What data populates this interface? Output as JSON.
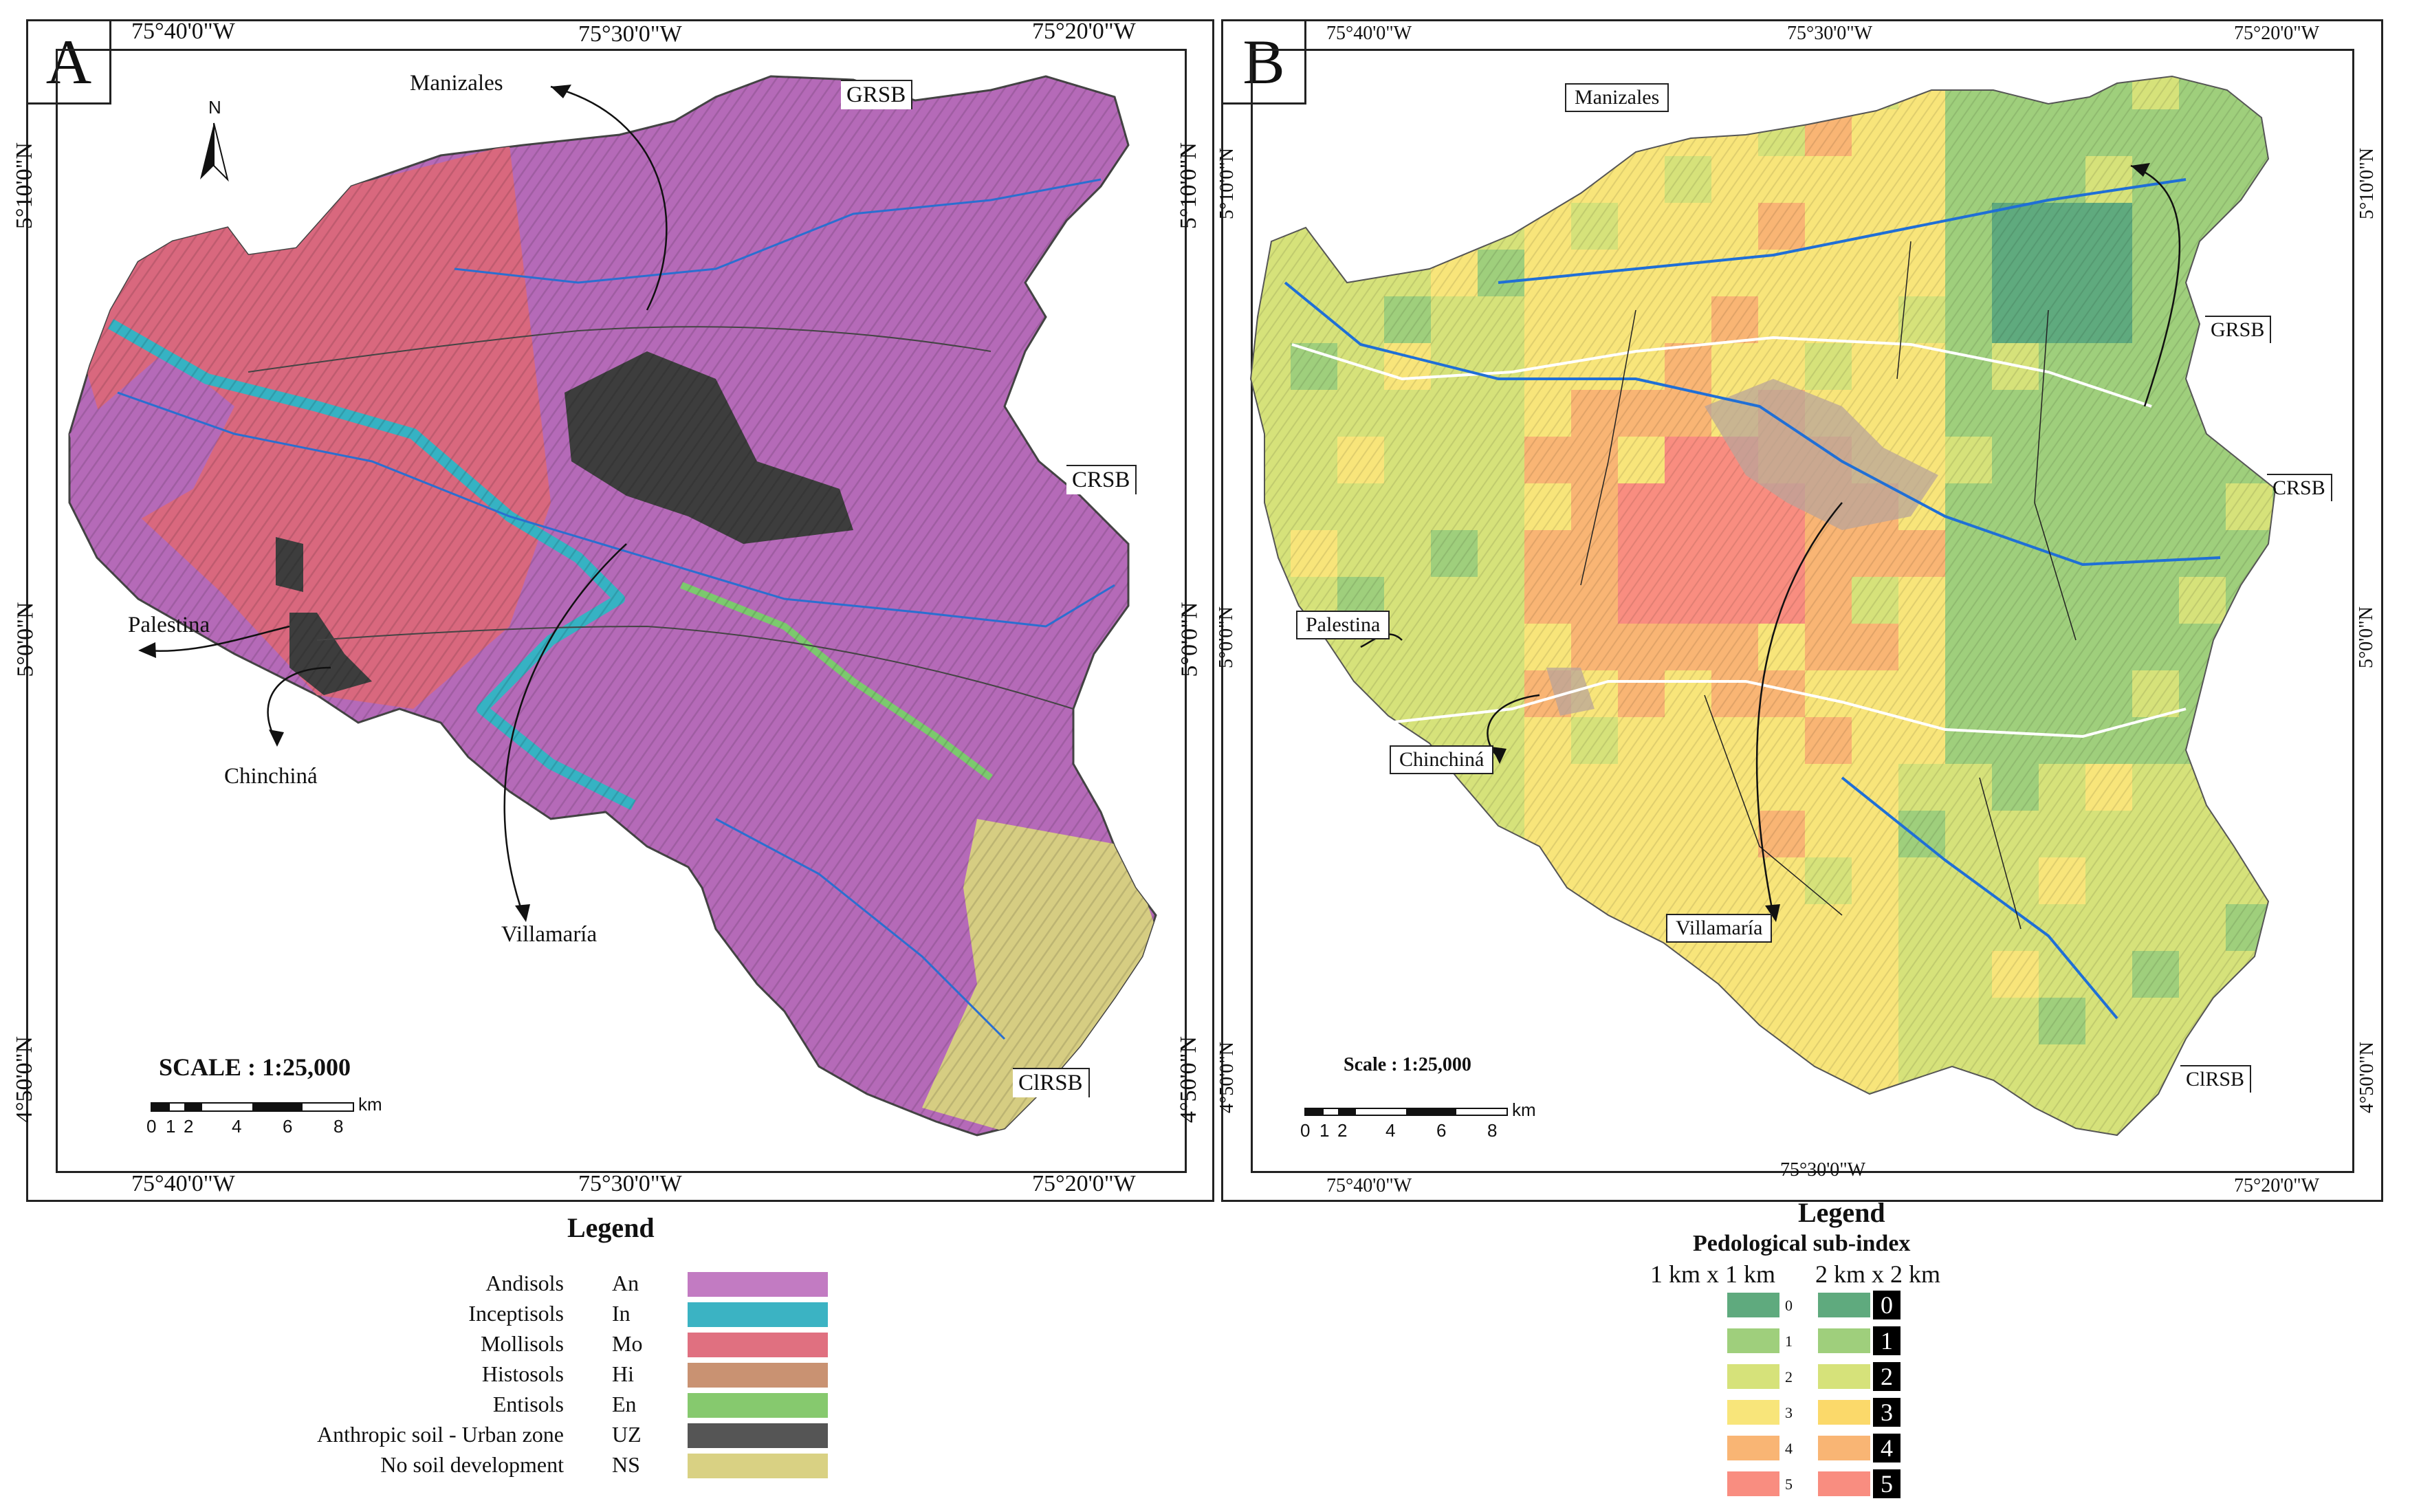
{
  "panel_a": {
    "letter": "A",
    "coords_top": [
      "75°40'0\"W",
      "75°30'0\"W",
      "75°20'0\"W"
    ],
    "coords_bottom": [
      "75°40'0\"W",
      "75°30'0\"W",
      "75°20'0\"W"
    ],
    "coords_left": [
      "5°10'0\"N",
      "5°0'0\"N",
      "4°50'0\"N"
    ],
    "coords_right": [
      "5°10'0\"N",
      "5°0'0\"N",
      "4°50'0\"N"
    ],
    "north_label": "N",
    "places": {
      "manizales": "Manizales",
      "palestina": "Palestina",
      "chinchina": "Chinchiná",
      "villamaria": "Villamaría"
    },
    "basins": {
      "grsb": "GRSB",
      "crsb": "CRSB",
      "clrsb": "ClRSB"
    },
    "scale_title": "SCALE : 1:25,000",
    "scale_ticks": [
      "0",
      "1",
      "2",
      "4",
      "6",
      "8"
    ],
    "scale_unit": "km",
    "legend_title": "Legend",
    "legend": [
      {
        "name": "Andisols",
        "code": "An",
        "color": "#c27bc2"
      },
      {
        "name": "Inceptisols",
        "code": "In",
        "color": "#3bb3c3"
      },
      {
        "name": "Mollisols",
        "code": "Mo",
        "color": "#e07080"
      },
      {
        "name": "Histosols",
        "code": "Hi",
        "color": "#c99272"
      },
      {
        "name": "Entisols",
        "code": "En",
        "color": "#86c96e"
      },
      {
        "name": "Anthropic soil - Urban zone",
        "code": "UZ",
        "color": "#555555"
      },
      {
        "name": "No soil development",
        "code": "NS",
        "color": "#d9d183"
      }
    ]
  },
  "panel_b": {
    "letter": "B",
    "coords_top": [
      "75°40'0\"W",
      "75°30'0\"W",
      "75°20'0\"W"
    ],
    "coords_bottom": [
      "75°40'0\"W",
      "75°30'0\"W",
      "75°20'0\"W"
    ],
    "coords_left": [
      "5°10'0\"N",
      "5°0'0\"N",
      "4°50'0\"N"
    ],
    "coords_right": [
      "5°10'0\"N",
      "5°0'0\"N",
      "4°50'0\"N"
    ],
    "places": {
      "manizales": "Manizales",
      "palestina": "Palestina",
      "chinchina": "Chinchiná",
      "villamaria": "Villamaría"
    },
    "basins": {
      "grsb": "GRSB",
      "crsb": "CRSB",
      "clrsb": "ClRSB"
    },
    "scale_title": "Scale : 1:25,000",
    "scale_ticks": [
      "0",
      "1",
      "2",
      "4",
      "6",
      "8"
    ],
    "scale_unit": "km",
    "legend_title": "Legend",
    "legend_subtitle": "Pedological sub-index",
    "col_1km": "1 km x 1 km",
    "col_2km": "2 km x 2 km",
    "classes": [
      {
        "value": "0",
        "color_1km": "#5faa7e",
        "color_2km": "#5faa7e"
      },
      {
        "value": "1",
        "color_1km": "#9fcf7c",
        "color_2km": "#9fcf7c"
      },
      {
        "value": "2",
        "color_1km": "#d6e27a",
        "color_2km": "#d6e27a"
      },
      {
        "value": "3",
        "color_1km": "#f8e57a",
        "color_2km": "#fbd96a"
      },
      {
        "value": "4",
        "color_1km": "#f9b574",
        "color_2km": "#f9b574"
      },
      {
        "value": "5",
        "color_1km": "#f98d80",
        "color_2km": "#f98d80"
      }
    ]
  }
}
